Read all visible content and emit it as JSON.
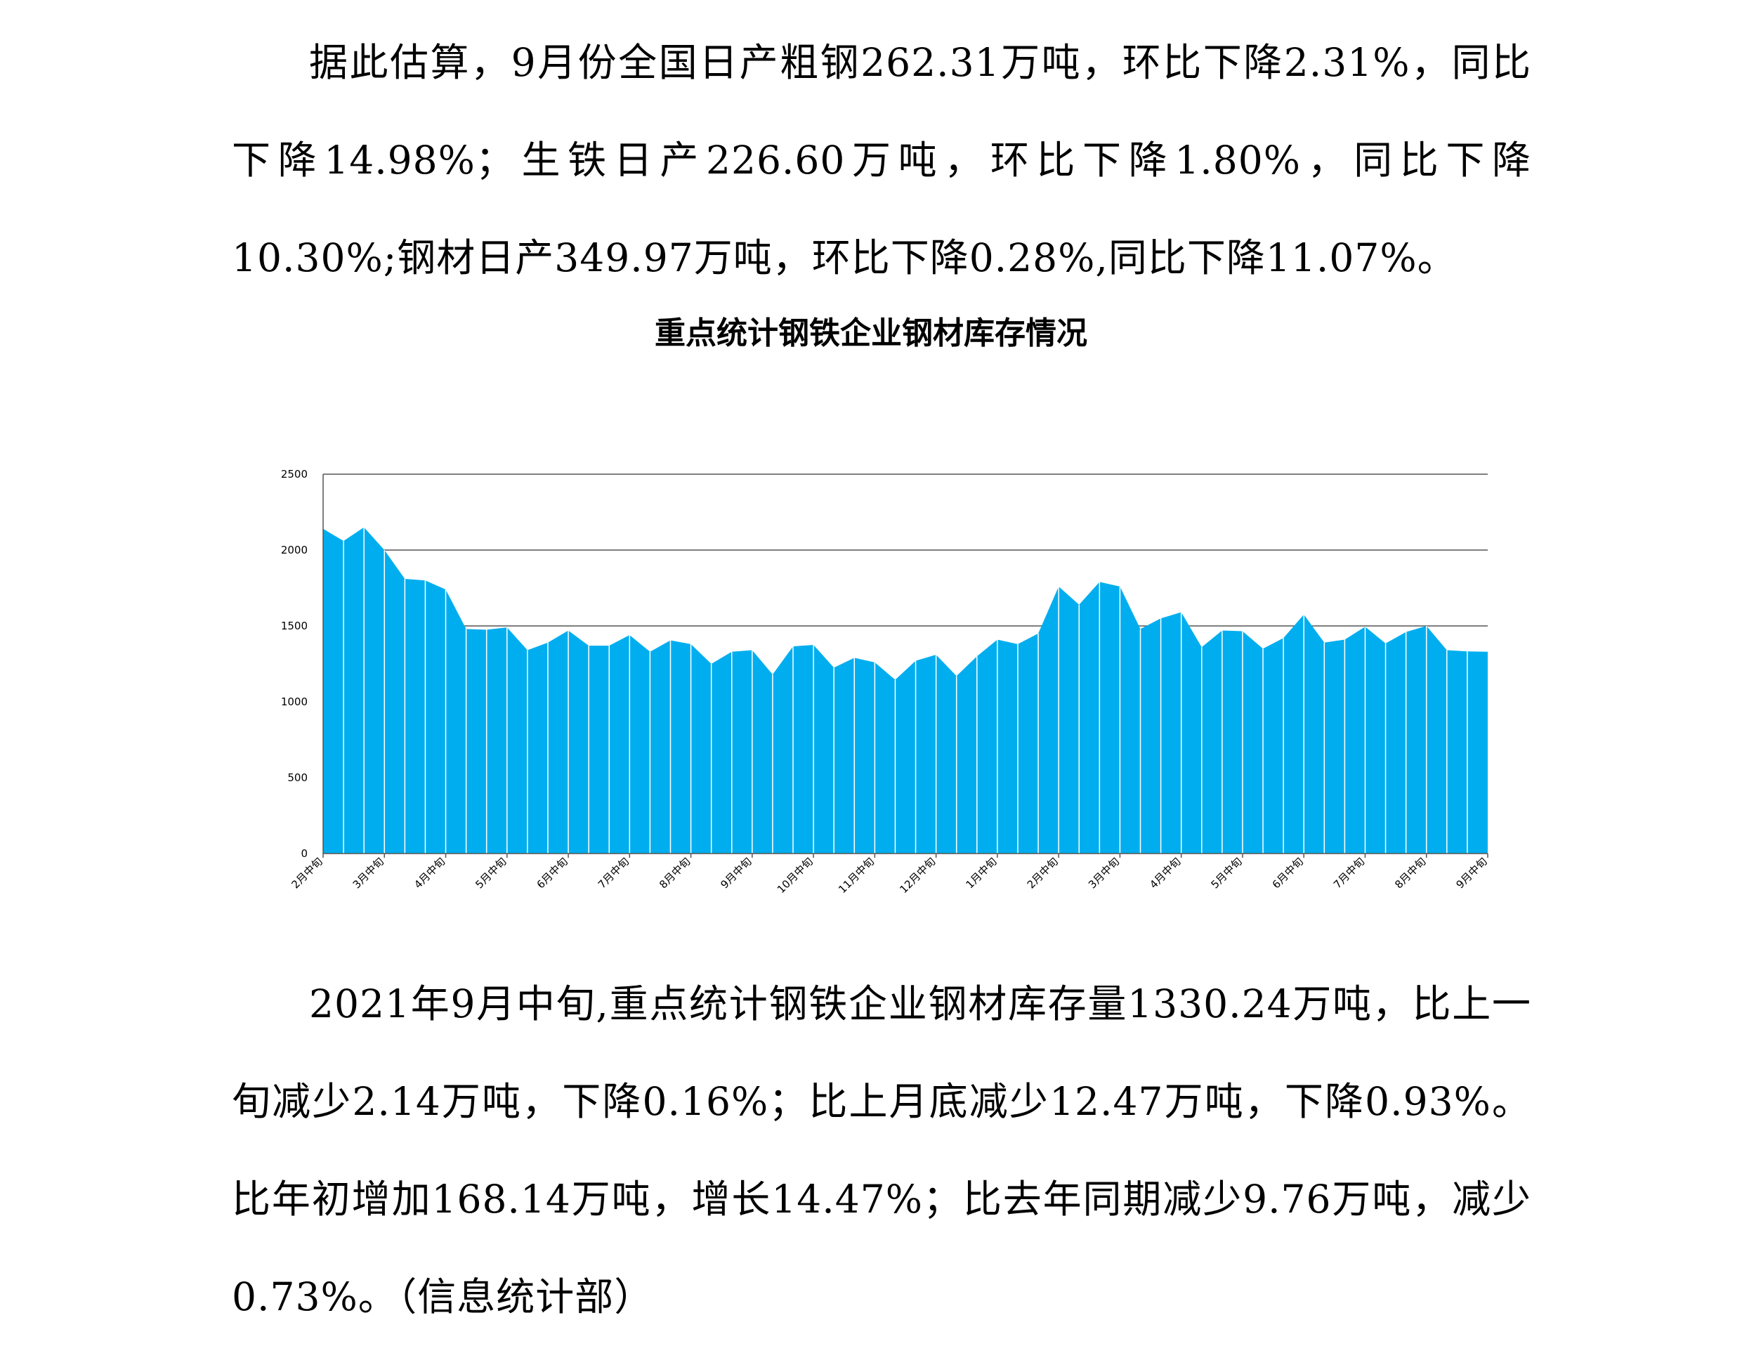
{
  "paragraphs": {
    "p1": "据此估算，9月份全国日产粗钢262.31万吨，环比下降2.31%，同比下降14.98%；生铁日产226.60万吨，环比下降1.80%，同比下降10.30%;钢材日产349.97万吨，环比下降0.28%,同比下降11.07%。",
    "p2": "2021年9月中旬,重点统计钢铁企业钢材库存量1330.24万吨，比上一旬减少2.14万吨，下降0.16%；比上月底减少12.47万吨，下降0.93%。比年初增加168.14万吨，增长14.47%；比去年同期减少9.76万吨，减少0.73%。（信息统计部）"
  },
  "chart_data": {
    "type": "area",
    "title": "重点统计钢铁企业钢材库存情况",
    "xlabel": "",
    "ylabel": "",
    "ylim": [
      0,
      2500
    ],
    "yticks": [
      0,
      500,
      1000,
      1500,
      2000,
      2500
    ],
    "grid": true,
    "legend": "none",
    "color": "#00aeef",
    "separator_color": "#ffffff",
    "x_tick_labels": [
      "2月中旬",
      "3月中旬",
      "4月中旬",
      "5月中旬",
      "6月中旬",
      "7月中旬",
      "8月中旬",
      "9月中旬",
      "10月中旬",
      "11月中旬",
      "12月中旬",
      "1月中旬",
      "2月中旬",
      "3月中旬",
      "4月中旬",
      "5月中旬",
      "6月中旬",
      "7月中旬",
      "8月中旬",
      "9月中旬"
    ],
    "values": [
      2140,
      2060,
      2150,
      2000,
      1810,
      1800,
      1740,
      1480,
      1475,
      1490,
      1340,
      1390,
      1470,
      1370,
      1370,
      1440,
      1330,
      1405,
      1380,
      1250,
      1330,
      1340,
      1180,
      1365,
      1375,
      1225,
      1290,
      1260,
      1145,
      1270,
      1310,
      1170,
      1300,
      1410,
      1380,
      1450,
      1760,
      1640,
      1790,
      1760,
      1480,
      1550,
      1590,
      1360,
      1470,
      1465,
      1350,
      1420,
      1575,
      1390,
      1410,
      1495,
      1385,
      1460,
      1500,
      1340,
      1332,
      1330
    ]
  }
}
